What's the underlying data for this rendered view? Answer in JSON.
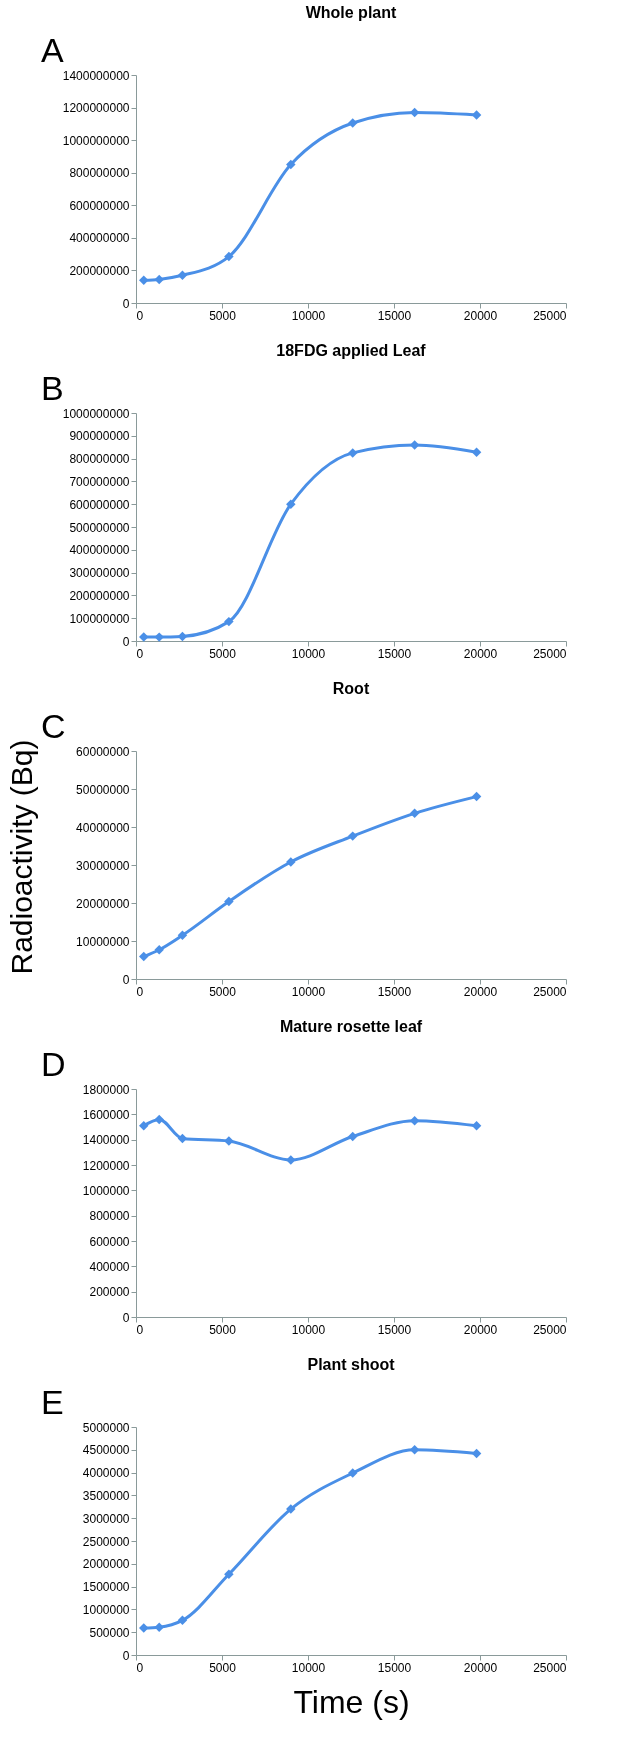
{
  "chart_data": [
    {
      "type": "line",
      "title": "Whole plant",
      "annotations": [
        "A"
      ],
      "x": [
        450,
        1350,
        2700,
        5400,
        9000,
        12600,
        16200,
        19800
      ],
      "xlim": [
        0,
        25000
      ],
      "xticks": [
        0,
        5000,
        10000,
        15000,
        20000,
        25000
      ],
      "ylim": [
        0,
        1400000000
      ],
      "yticks": [
        0,
        200000000,
        400000000,
        600000000,
        800000000,
        1000000000,
        1200000000,
        1400000000
      ],
      "marker": "diamond",
      "series": [
        {
          "color": "#4a8fe7",
          "values": [
            140000000,
            145000000,
            170000000,
            285000000,
            850000000,
            1105000000,
            1170000000,
            1155000000
          ]
        }
      ]
    },
    {
      "type": "line",
      "title": "18FDG applied Leaf",
      "annotations": [
        "B"
      ],
      "x": [
        450,
        1350,
        2700,
        5400,
        9000,
        12600,
        16200,
        19800
      ],
      "xlim": [
        0,
        25000
      ],
      "xticks": [
        0,
        5000,
        10000,
        15000,
        20000,
        25000
      ],
      "ylim": [
        0,
        1000000000
      ],
      "yticks": [
        0,
        100000000,
        200000000,
        300000000,
        400000000,
        500000000,
        600000000,
        700000000,
        800000000,
        900000000,
        1000000000
      ],
      "marker": "diamond",
      "series": [
        {
          "color": "#4a8fe7",
          "values": [
            18000000,
            17000000,
            20000000,
            85000000,
            600000000,
            825000000,
            860000000,
            828000000
          ]
        }
      ]
    },
    {
      "type": "line",
      "title": "Root",
      "annotations": [
        "C"
      ],
      "ylabel": "Radioactivity (Bq)",
      "x": [
        450,
        1350,
        2700,
        5400,
        9000,
        12600,
        16200,
        19800
      ],
      "xlim": [
        0,
        25000
      ],
      "xticks": [
        0,
        5000,
        10000,
        15000,
        20000,
        25000
      ],
      "ylim": [
        0,
        60000000
      ],
      "yticks": [
        0,
        10000000,
        20000000,
        30000000,
        40000000,
        50000000,
        60000000
      ],
      "marker": "diamond",
      "series": [
        {
          "color": "#4a8fe7",
          "values": [
            5900000,
            7700000,
            11500000,
            20400000,
            30800000,
            37600000,
            43600000,
            48000000
          ]
        }
      ]
    },
    {
      "type": "line",
      "title": "Mature rosette leaf",
      "annotations": [
        "D"
      ],
      "x": [
        450,
        1350,
        2700,
        5400,
        9000,
        12600,
        16200,
        19800
      ],
      "xlim": [
        0,
        25000
      ],
      "xticks": [
        0,
        5000,
        10000,
        15000,
        20000,
        25000
      ],
      "ylim": [
        0,
        1800000
      ],
      "yticks": [
        0,
        200000,
        400000,
        600000,
        800000,
        1000000,
        1200000,
        1400000,
        1600000,
        1800000
      ],
      "marker": "diamond",
      "series": [
        {
          "color": "#4a8fe7",
          "values": [
            1510000,
            1560000,
            1410000,
            1390000,
            1240000,
            1425000,
            1550000,
            1510000
          ]
        }
      ]
    },
    {
      "type": "line",
      "title": "Plant shoot",
      "annotations": [
        "E"
      ],
      "xlabel": "Time (s)",
      "x": [
        450,
        1350,
        2700,
        5400,
        9000,
        12600,
        16200,
        19800
      ],
      "xlim": [
        0,
        25000
      ],
      "xticks": [
        0,
        5000,
        10000,
        15000,
        20000,
        25000
      ],
      "ylim": [
        0,
        5000000
      ],
      "yticks": [
        0,
        500000,
        1000000,
        1500000,
        2000000,
        2500000,
        3000000,
        3500000,
        4000000,
        4500000,
        5000000
      ],
      "marker": "diamond",
      "series": [
        {
          "color": "#4a8fe7",
          "values": [
            590000,
            610000,
            760000,
            1770000,
            3200000,
            3990000,
            4500000,
            4420000
          ]
        }
      ]
    }
  ]
}
